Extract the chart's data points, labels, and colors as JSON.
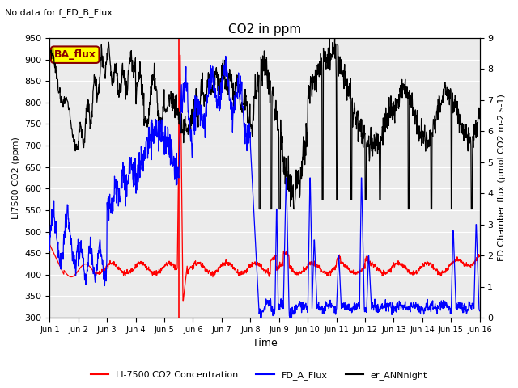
{
  "title": "CO2 in ppm",
  "suptitle": "No data for f_FD_B_Flux",
  "ylabel_left": "LI7500 CO2 (ppm)",
  "ylabel_right": "FD Chamber flux (μmol CO2 m-2 s-1)",
  "xlabel": "Time",
  "ylim_left": [
    300,
    950
  ],
  "ylim_right": [
    0.0,
    9.0
  ],
  "yticks_left": [
    300,
    350,
    400,
    450,
    500,
    550,
    600,
    650,
    700,
    750,
    800,
    850,
    900,
    950
  ],
  "yticks_right": [
    0.0,
    1.0,
    2.0,
    3.0,
    4.0,
    5.0,
    6.0,
    7.0,
    8.0,
    9.0
  ],
  "xtick_labels": [
    "Jun 1",
    "Jun 2",
    "Jun 3",
    "Jun 4",
    "Jun 5",
    "Jun 6",
    "Jun 7",
    "Jun 8",
    "Jun 9",
    "Jun 10",
    "Jun 11",
    "Jun 12",
    "Jun 13",
    "Jun 14",
    "Jun 15",
    "Jun 16"
  ],
  "color_red": "#ff0000",
  "color_blue": "#0000ff",
  "color_black": "#000000",
  "color_vline": "#ff0000",
  "ba_flux_color": "#ffff00",
  "ba_flux_text": "BA_flux",
  "legend_labels": [
    "LI-7500 CO2 Concentration",
    "FD_A_Flux",
    "er_ANNnight"
  ],
  "plot_bg_color": "#ebebeb"
}
